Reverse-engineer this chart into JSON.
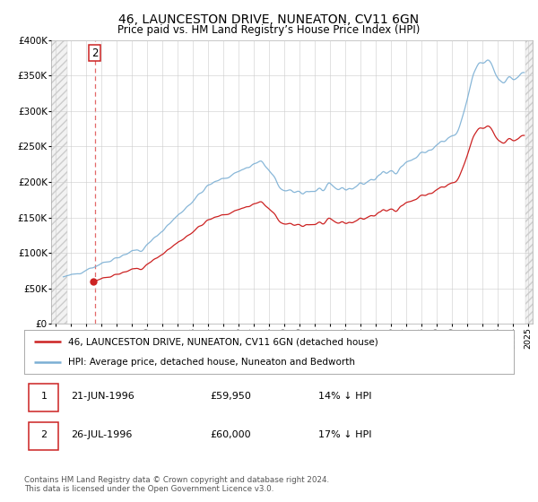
{
  "title": "46, LAUNCESTON DRIVE, NUNEATON, CV11 6GN",
  "subtitle": "Price paid vs. HM Land Registry’s House Price Index (HPI)",
  "ytick_values": [
    0,
    50000,
    100000,
    150000,
    200000,
    250000,
    300000,
    350000,
    400000
  ],
  "ytick_labels": [
    "£0",
    "£50K",
    "£100K",
    "£150K",
    "£200K",
    "£250K",
    "£300K",
    "£350K",
    "£400K"
  ],
  "ylim": [
    0,
    400000
  ],
  "xlim": [
    1993.7,
    2025.3
  ],
  "hpi_color": "#7bafd4",
  "price_color": "#cc2222",
  "vline_color": "#dd4444",
  "transactions": [
    {
      "label": "2",
      "date_num": 1996.558,
      "price": 60000
    }
  ],
  "legend_price_label": "46, LAUNCESTON DRIVE, NUNEATON, CV11 6GN (detached house)",
  "legend_hpi_label": "HPI: Average price, detached house, Nuneaton and Bedworth",
  "table_rows": [
    [
      "1",
      "21-JUN-1996",
      "£59,950",
      "14% ↓ HPI"
    ],
    [
      "2",
      "26-JUL-1996",
      "£60,000",
      "17% ↓ HPI"
    ]
  ],
  "footer": "Contains HM Land Registry data © Crown copyright and database right 2024.\nThis data is licensed under the Open Government Licence v3.0.",
  "bg_color": "#ffffff",
  "grid_color": "#cccccc",
  "hatch_end": 1994.75,
  "base_hpi_index": 72.5,
  "base_price_1": 59950,
  "base_price_2": 60000,
  "transaction_date_1": 1996.472,
  "transaction_date_2": 1996.558
}
